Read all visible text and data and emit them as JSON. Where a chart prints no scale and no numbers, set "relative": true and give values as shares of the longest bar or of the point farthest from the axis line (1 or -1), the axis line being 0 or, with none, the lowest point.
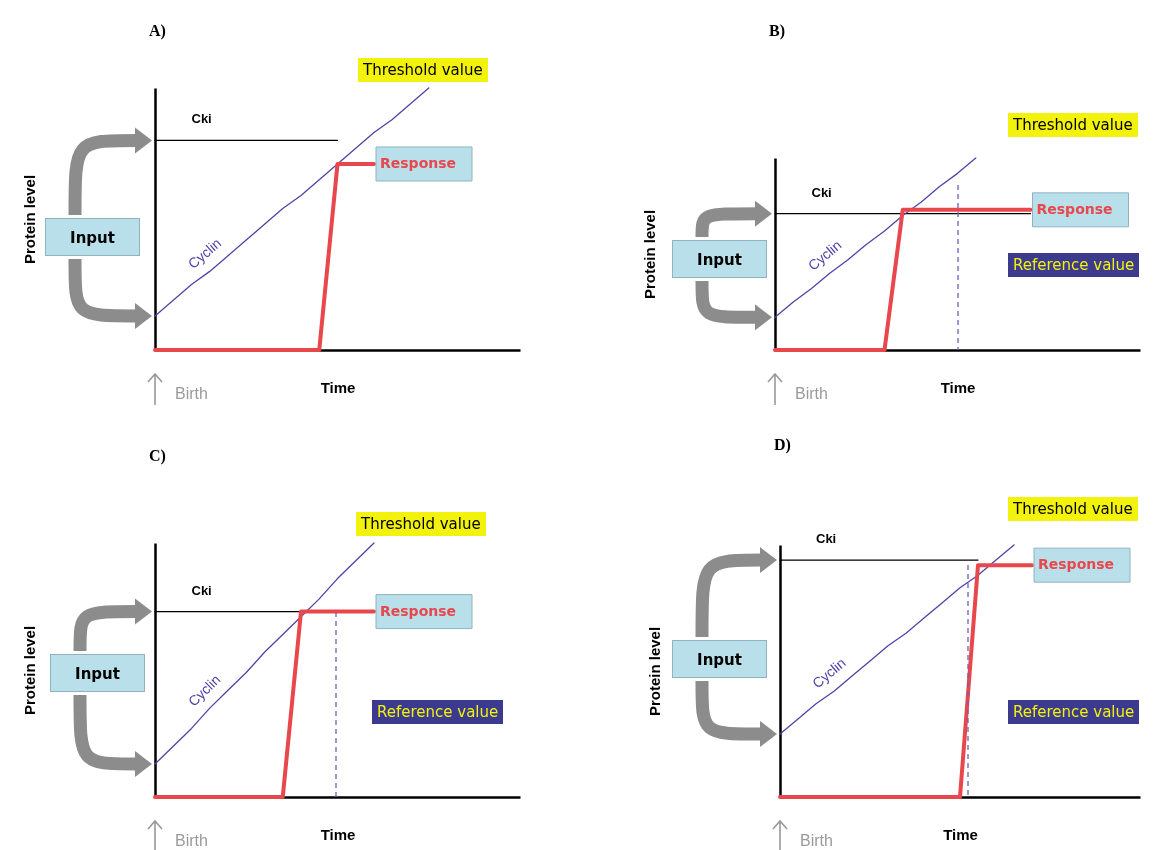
{
  "chart_data": [
    {
      "type": "line",
      "title": "A)",
      "xlabel": "Time",
      "ylabel": "Protein level",
      "relative": true,
      "categories": [
        null,
        null,
        null,
        null,
        null,
        null,
        null,
        null,
        null,
        null,
        null,
        null,
        null,
        null,
        null,
        null,
        null,
        null,
        null,
        null,
        null
      ],
      "series": [
        {
          "name": "Cki",
          "color": "#000000",
          "values": [
            0.8,
            0.8,
            0.8,
            0.8,
            0.8,
            0.8,
            0.8,
            0.8,
            0.8,
            0.8,
            0.8,
            null,
            null,
            null,
            null,
            null,
            null,
            null,
            null,
            null,
            null
          ]
        },
        {
          "name": "Cyclin",
          "color": "#4e44a8",
          "values": [
            0.13,
            0.19,
            0.25,
            0.3,
            0.36,
            0.42,
            0.48,
            0.54,
            0.59,
            0.65,
            0.71,
            0.77,
            0.83,
            0.88,
            0.94,
            1.0,
            null,
            null,
            null,
            null,
            null
          ]
        },
        {
          "name": "Response",
          "color": "#e8474c",
          "values": [
            0,
            0,
            0,
            0,
            0,
            0,
            0,
            0,
            0,
            0,
            0.71,
            0.71,
            0.71,
            null,
            null,
            null,
            null,
            null,
            null,
            null,
            null
          ]
        }
      ],
      "annotations": [
        "Input",
        "Birth",
        "Threshold value"
      ]
    },
    {
      "type": "line",
      "title": "B)",
      "xlabel": "Time",
      "ylabel": "Protein level",
      "relative": true,
      "categories": [
        null,
        null,
        null,
        null,
        null,
        null,
        null,
        null,
        null,
        null,
        null,
        null,
        null,
        null,
        null,
        null,
        null,
        null,
        null,
        null,
        null
      ],
      "series": [
        {
          "name": "Cki",
          "color": "#000000",
          "values": [
            0.71,
            0.71,
            0.71,
            0.71,
            0.71,
            0.71,
            0.71,
            0.71,
            0.71,
            0.71,
            0.71,
            0.71,
            0.71,
            0.71,
            0.71,
            null,
            null,
            null,
            null,
            null,
            null
          ]
        },
        {
          "name": "Cyclin",
          "color": "#4e44a8",
          "values": [
            0.17,
            0.25,
            0.32,
            0.4,
            0.47,
            0.55,
            0.62,
            0.7,
            0.77,
            0.85,
            0.92,
            1.0,
            null,
            null,
            null,
            null,
            null,
            null,
            null,
            null,
            null
          ]
        },
        {
          "name": "Response",
          "color": "#e8474c",
          "values": [
            0,
            0,
            0,
            0,
            0,
            0,
            0,
            0.73,
            0.73,
            0.73,
            0.73,
            0.73,
            0.73,
            0.73,
            0.73,
            null,
            null,
            null,
            null,
            null,
            null
          ]
        }
      ],
      "annotations": [
        "Input",
        "Birth",
        "Threshold value",
        "Reference value"
      ]
    },
    {
      "type": "line",
      "title": "C)",
      "xlabel": "Time",
      "ylabel": "Protein level",
      "relative": true,
      "categories": [
        null,
        null,
        null,
        null,
        null,
        null,
        null,
        null,
        null,
        null,
        null,
        null,
        null,
        null,
        null,
        null,
        null,
        null,
        null,
        null,
        null
      ],
      "series": [
        {
          "name": "Cki",
          "color": "#000000",
          "values": [
            0.73,
            0.73,
            0.73,
            0.73,
            0.73,
            0.73,
            0.73,
            0.73,
            0.73,
            null,
            null,
            null,
            null,
            null,
            null,
            null,
            null,
            null,
            null,
            null,
            null
          ]
        },
        {
          "name": "Cyclin",
          "color": "#4e44a8",
          "values": [
            0.13,
            0.2,
            0.27,
            0.35,
            0.42,
            0.49,
            0.57,
            0.64,
            0.71,
            0.78,
            0.86,
            0.93,
            1.0,
            null,
            null,
            null,
            null,
            null,
            null,
            null,
            null
          ]
        },
        {
          "name": "Response",
          "color": "#e8474c",
          "values": [
            0,
            0,
            0,
            0,
            0,
            0,
            0,
            0,
            0.73,
            0.73,
            0.73,
            0.73,
            0.73,
            null,
            null,
            null,
            null,
            null,
            null,
            null,
            null
          ]
        }
      ],
      "annotations": [
        "Input",
        "Birth",
        "Threshold value",
        "Reference value"
      ]
    },
    {
      "type": "line",
      "title": "D)",
      "xlabel": "Time",
      "ylabel": "Protein level",
      "relative": true,
      "categories": [
        null,
        null,
        null,
        null,
        null,
        null,
        null,
        null,
        null,
        null,
        null,
        null,
        null,
        null,
        null,
        null,
        null,
        null,
        null,
        null,
        null
      ],
      "series": [
        {
          "name": "Cki",
          "color": "#000000",
          "values": [
            0.94,
            0.94,
            0.94,
            0.94,
            0.94,
            0.94,
            0.94,
            0.94,
            0.94,
            0.94,
            0.94,
            0.94,
            null,
            null,
            null,
            null,
            null,
            null,
            null,
            null,
            null
          ]
        },
        {
          "name": "Cyclin",
          "color": "#4e44a8",
          "values": [
            0.25,
            0.31,
            0.37,
            0.42,
            0.48,
            0.54,
            0.6,
            0.65,
            0.71,
            0.77,
            0.83,
            0.88,
            0.94,
            1.0,
            null,
            null,
            null,
            null,
            null,
            null,
            null
          ]
        },
        {
          "name": "Response",
          "color": "#e8474c",
          "values": [
            0,
            0,
            0,
            0,
            0,
            0,
            0,
            0,
            0,
            0,
            0,
            0.92,
            0.92,
            0.92,
            0.92,
            null,
            null,
            null,
            null,
            null,
            null
          ]
        }
      ],
      "annotations": [
        "Input",
        "Birth",
        "Threshold value",
        "Reference value"
      ]
    }
  ]
}
